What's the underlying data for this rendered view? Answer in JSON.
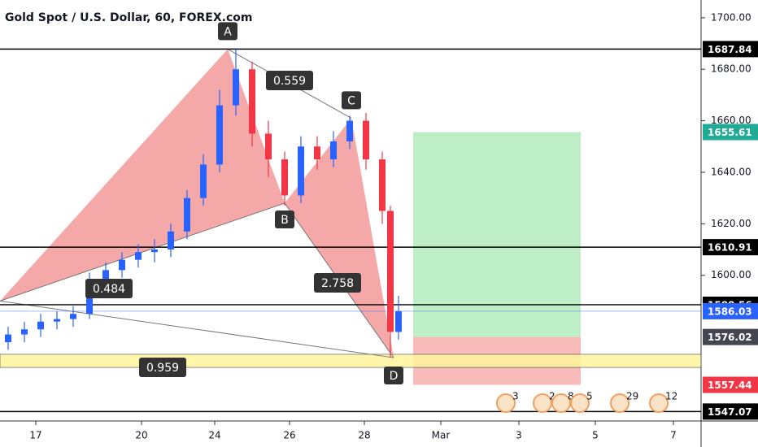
{
  "chart_data": {
    "type": "candlestick",
    "title": "Gold Spot / U.S. Dollar, 60, FOREX.com",
    "xlim": [
      0,
      431
    ],
    "ylim": [
      1543.4,
      1706.9
    ],
    "xticks": [
      {
        "value": 22,
        "label": "17"
      },
      {
        "value": 87,
        "label": "20"
      },
      {
        "value": 132,
        "label": "24"
      },
      {
        "value": 178,
        "label": "26"
      },
      {
        "value": 224,
        "label": "28"
      },
      {
        "value": 271,
        "label": "Mar"
      },
      {
        "value": 319,
        "label": "3"
      },
      {
        "value": 366,
        "label": "5"
      },
      {
        "value": 414,
        "label": "7"
      }
    ],
    "yticks": [
      {
        "value": 1700,
        "label": "1700.00"
      },
      {
        "value": 1680,
        "label": "1680.00"
      },
      {
        "value": 1660,
        "label": "1660.00"
      },
      {
        "value": 1640,
        "label": "1640.00"
      },
      {
        "value": 1620,
        "label": "1620.00"
      },
      {
        "value": 1600,
        "label": "1600.00"
      }
    ],
    "up_color": "#2962ff",
    "down_color": "#f23645",
    "candles": {
      "x": [
        5,
        15,
        25,
        35,
        45,
        55,
        65,
        75,
        85,
        95,
        105,
        115,
        125,
        135,
        145,
        155,
        165,
        175,
        185,
        195,
        205,
        215,
        225,
        235,
        240,
        245
      ],
      "open": [
        1574,
        1577,
        1579,
        1582,
        1583,
        1585,
        1597,
        1602,
        1606,
        1609,
        1610,
        1617,
        1630,
        1643,
        1666,
        1680,
        1655,
        1645,
        1631,
        1650,
        1645,
        1652,
        1660,
        1645,
        1625,
        1578
      ],
      "high": [
        1580,
        1582,
        1585,
        1586,
        1588,
        1601,
        1605,
        1609,
        1612,
        1614,
        1620,
        1633,
        1647,
        1672,
        1687.84,
        1683,
        1660,
        1648,
        1654,
        1654,
        1656,
        1662,
        1663,
        1648,
        1627,
        1592
      ],
      "low": [
        1571,
        1574,
        1576,
        1579,
        1580,
        1583,
        1594,
        1599,
        1603,
        1605,
        1607,
        1614,
        1627,
        1640,
        1662,
        1650,
        1638,
        1627,
        1628,
        1641,
        1642,
        1649,
        1641,
        1620,
        1568,
        1575
      ],
      "close": [
        1577,
        1579,
        1582,
        1583,
        1585,
        1597,
        1602,
        1606,
        1609,
        1610,
        1617,
        1630,
        1643,
        1666,
        1680,
        1655,
        1645,
        1631,
        1650,
        1645,
        1652,
        1660,
        1645,
        1625,
        1578,
        1586
      ]
    },
    "pattern": {
      "color": "#f28b8b",
      "points": [
        {
          "x": 0,
          "price": 1590
        },
        {
          "label": "A",
          "x": 140,
          "price": 1687.84
        },
        {
          "label": "B",
          "x": 175,
          "price": 1628
        },
        {
          "label": "C",
          "x": 216,
          "price": 1661
        },
        {
          "label": "D",
          "x": 242,
          "price": 1568
        }
      ],
      "ratios": [
        0.559,
        0.484,
        2.758,
        0.959
      ]
    },
    "zone": {
      "low": 1564.2,
      "high": 1569.3,
      "color": "#fff59d"
    },
    "levels": [
      {
        "price": 1687.84,
        "color": "#000000"
      },
      {
        "price": 1610.91,
        "color": "#000000"
      },
      {
        "price": 1588.56,
        "color": "#000000"
      },
      {
        "price": 1547.07,
        "color": "#000000"
      }
    ],
    "last_price": {
      "price": 1586.03,
      "color": "#2962ff"
    },
    "position": {
      "x_start": 254,
      "x_end": 357,
      "target": 1655.61,
      "entry": 1576.02,
      "stop": 1557.44,
      "target_color": "#22ab94",
      "entry_color": "#434651",
      "stop_color": "#f23645"
    },
    "events": [
      "3",
      "2",
      "8",
      "5",
      "29",
      "12"
    ]
  }
}
